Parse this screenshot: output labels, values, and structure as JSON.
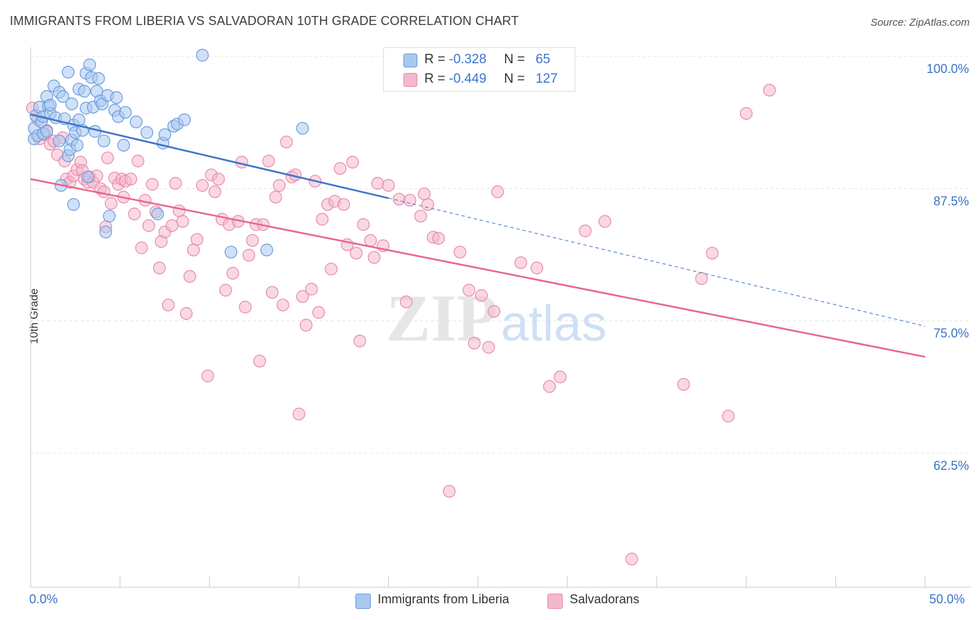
{
  "title": "IMMIGRANTS FROM LIBERIA VS SALVADORAN 10TH GRADE CORRELATION CHART",
  "source": "Source: ZipAtlas.com",
  "watermark": {
    "zip": "ZIP",
    "atlas": "atlas"
  },
  "legend": {
    "series1": {
      "r_label": "R =",
      "r_value": "-0.328",
      "n_label": "N =",
      "n_value": "65",
      "color": "#a9c8f0"
    },
    "series2": {
      "r_label": "R =",
      "r_value": "-0.449",
      "n_label": "N =",
      "n_value": "127",
      "color": "#f4b8cc"
    }
  },
  "bottom_legend": {
    "series1": "Immigrants from Liberia",
    "series2": "Salvadorans"
  },
  "chart_data": {
    "type": "scatter",
    "xlabel": "",
    "ylabel": "10th Grade",
    "xlim": [
      0,
      50
    ],
    "ylim": [
      50,
      101
    ],
    "x_tick_labels": [
      "0.0%",
      "50.0%"
    ],
    "y_ticks": [
      62.5,
      75.0,
      87.5,
      100.0
    ],
    "y_tick_labels": [
      "62.5%",
      "75.0%",
      "87.5%",
      "100.0%"
    ],
    "grid": true,
    "series": [
      {
        "name": "Immigrants from Liberia",
        "color": "#6a9be0",
        "fill": "#a9c8f0",
        "trend": {
          "x": [
            0.0,
            20.0
          ],
          "y": [
            94.5,
            86.6
          ],
          "dashed_to": [
            50.0,
            74.5
          ]
        },
        "points": [
          [
            0.2,
            93.2
          ],
          [
            0.2,
            92.2
          ],
          [
            0.3,
            94.4
          ],
          [
            0.4,
            92.5
          ],
          [
            0.5,
            95.2
          ],
          [
            0.6,
            93.8
          ],
          [
            0.7,
            92.7
          ],
          [
            0.7,
            94.3
          ],
          [
            0.9,
            92.9
          ],
          [
            0.9,
            96.2
          ],
          [
            1.0,
            95.3
          ],
          [
            1.1,
            94.6
          ],
          [
            1.1,
            95.4
          ],
          [
            1.3,
            97.2
          ],
          [
            1.4,
            94.2
          ],
          [
            1.6,
            96.6
          ],
          [
            1.6,
            92.0
          ],
          [
            1.7,
            87.8
          ],
          [
            1.8,
            96.2
          ],
          [
            1.9,
            94.1
          ],
          [
            2.1,
            98.5
          ],
          [
            2.1,
            90.6
          ],
          [
            2.2,
            91.2
          ],
          [
            2.3,
            92.1
          ],
          [
            2.3,
            95.5
          ],
          [
            2.4,
            93.5
          ],
          [
            2.4,
            86.0
          ],
          [
            2.5,
            92.8
          ],
          [
            2.6,
            91.6
          ],
          [
            2.7,
            96.9
          ],
          [
            2.9,
            93.0
          ],
          [
            3.0,
            96.7
          ],
          [
            3.1,
            95.1
          ],
          [
            3.1,
            98.4
          ],
          [
            3.2,
            88.6
          ],
          [
            3.3,
            99.2
          ],
          [
            3.4,
            98.0
          ],
          [
            3.5,
            95.2
          ],
          [
            3.6,
            92.9
          ],
          [
            3.7,
            96.7
          ],
          [
            3.8,
            97.9
          ],
          [
            3.9,
            95.8
          ],
          [
            4.0,
            95.5
          ],
          [
            4.1,
            92.0
          ],
          [
            4.2,
            83.4
          ],
          [
            4.3,
            96.3
          ],
          [
            4.4,
            84.9
          ],
          [
            4.7,
            94.9
          ],
          [
            4.8,
            96.1
          ],
          [
            4.9,
            94.3
          ],
          [
            5.2,
            91.6
          ],
          [
            5.3,
            94.7
          ],
          [
            5.9,
            93.8
          ],
          [
            6.5,
            92.8
          ],
          [
            7.1,
            85.1
          ],
          [
            7.4,
            91.8
          ],
          [
            7.5,
            92.6
          ],
          [
            8.0,
            93.4
          ],
          [
            8.2,
            93.6
          ],
          [
            9.6,
            100.1
          ],
          [
            11.2,
            81.5
          ],
          [
            13.2,
            81.7
          ],
          [
            15.2,
            93.2
          ],
          [
            8.6,
            94.0
          ],
          [
            2.7,
            94.0
          ]
        ]
      },
      {
        "name": "Salvadorans",
        "color": "#e88aaa",
        "fill": "#f4b8cc",
        "trend": {
          "x": [
            0.0,
            50.0
          ],
          "y": [
            88.4,
            71.6
          ]
        },
        "points": [
          [
            0.1,
            95.1
          ],
          [
            0.4,
            94.0
          ],
          [
            0.5,
            92.2
          ],
          [
            0.8,
            92.6
          ],
          [
            0.9,
            93.0
          ],
          [
            1.1,
            91.7
          ],
          [
            1.3,
            92.0
          ],
          [
            1.5,
            90.7
          ],
          [
            1.8,
            92.3
          ],
          [
            1.9,
            90.1
          ],
          [
            2.0,
            88.4
          ],
          [
            2.2,
            88.1
          ],
          [
            2.4,
            88.7
          ],
          [
            2.6,
            89.3
          ],
          [
            2.8,
            90.0
          ],
          [
            2.9,
            89.2
          ],
          [
            3.0,
            88.4
          ],
          [
            3.2,
            88.1
          ],
          [
            3.3,
            88.6
          ],
          [
            3.5,
            88.1
          ],
          [
            3.7,
            88.7
          ],
          [
            3.9,
            87.5
          ],
          [
            4.1,
            87.2
          ],
          [
            4.2,
            83.9
          ],
          [
            4.3,
            90.4
          ],
          [
            4.5,
            86.1
          ],
          [
            4.7,
            88.5
          ],
          [
            4.9,
            87.9
          ],
          [
            5.1,
            88.4
          ],
          [
            5.2,
            86.7
          ],
          [
            5.3,
            88.2
          ],
          [
            5.6,
            88.4
          ],
          [
            5.8,
            85.1
          ],
          [
            6.0,
            90.1
          ],
          [
            6.2,
            81.9
          ],
          [
            6.4,
            86.4
          ],
          [
            6.6,
            84.0
          ],
          [
            6.8,
            87.9
          ],
          [
            7.0,
            85.3
          ],
          [
            7.2,
            80.0
          ],
          [
            7.3,
            82.5
          ],
          [
            7.5,
            83.4
          ],
          [
            7.7,
            76.5
          ],
          [
            7.9,
            84.0
          ],
          [
            8.1,
            88.0
          ],
          [
            8.3,
            85.4
          ],
          [
            8.5,
            84.4
          ],
          [
            8.7,
            75.7
          ],
          [
            8.9,
            79.2
          ],
          [
            9.1,
            81.7
          ],
          [
            9.3,
            82.7
          ],
          [
            9.6,
            87.8
          ],
          [
            9.9,
            69.8
          ],
          [
            10.1,
            88.8
          ],
          [
            10.3,
            87.2
          ],
          [
            10.5,
            88.4
          ],
          [
            10.7,
            84.6
          ],
          [
            10.9,
            77.9
          ],
          [
            11.1,
            84.1
          ],
          [
            11.3,
            79.5
          ],
          [
            11.6,
            84.4
          ],
          [
            11.8,
            90.0
          ],
          [
            12.0,
            76.3
          ],
          [
            12.2,
            81.2
          ],
          [
            12.4,
            82.6
          ],
          [
            12.6,
            84.1
          ],
          [
            12.8,
            71.2
          ],
          [
            13.0,
            84.1
          ],
          [
            13.3,
            90.1
          ],
          [
            13.5,
            77.7
          ],
          [
            13.7,
            86.7
          ],
          [
            13.9,
            87.8
          ],
          [
            14.1,
            76.5
          ],
          [
            14.3,
            91.9
          ],
          [
            14.6,
            88.6
          ],
          [
            14.8,
            88.8
          ],
          [
            15.0,
            66.2
          ],
          [
            15.2,
            77.3
          ],
          [
            15.4,
            74.6
          ],
          [
            15.7,
            78.0
          ],
          [
            15.9,
            88.2
          ],
          [
            16.1,
            75.8
          ],
          [
            16.3,
            84.6
          ],
          [
            16.6,
            86.0
          ],
          [
            16.8,
            79.9
          ],
          [
            17.0,
            86.3
          ],
          [
            17.3,
            89.4
          ],
          [
            17.5,
            86.0
          ],
          [
            17.7,
            82.2
          ],
          [
            18.0,
            90.0
          ],
          [
            18.2,
            81.4
          ],
          [
            18.4,
            73.1
          ],
          [
            18.6,
            84.1
          ],
          [
            19.0,
            82.6
          ],
          [
            19.2,
            81.0
          ],
          [
            19.4,
            88.0
          ],
          [
            19.7,
            82.1
          ],
          [
            20.0,
            87.8
          ],
          [
            20.6,
            86.5
          ],
          [
            21.2,
            86.4
          ],
          [
            21.8,
            84.9
          ],
          [
            22.2,
            86.0
          ],
          [
            22.5,
            82.9
          ],
          [
            22.8,
            82.8
          ],
          [
            23.4,
            58.9
          ],
          [
            24.0,
            81.5
          ],
          [
            24.5,
            77.9
          ],
          [
            24.8,
            72.9
          ],
          [
            25.2,
            77.4
          ],
          [
            25.6,
            72.5
          ],
          [
            25.9,
            75.9
          ],
          [
            26.1,
            87.2
          ],
          [
            27.4,
            80.5
          ],
          [
            28.3,
            80.0
          ],
          [
            29.0,
            68.8
          ],
          [
            29.6,
            69.7
          ],
          [
            31.0,
            83.5
          ],
          [
            32.1,
            84.4
          ],
          [
            33.6,
            52.5
          ],
          [
            36.5,
            69.0
          ],
          [
            37.5,
            79.0
          ],
          [
            38.1,
            81.4
          ],
          [
            39.0,
            66.0
          ],
          [
            40.0,
            94.6
          ],
          [
            41.3,
            96.8
          ],
          [
            22.0,
            87.0
          ],
          [
            21.0,
            76.8
          ]
        ]
      }
    ]
  }
}
